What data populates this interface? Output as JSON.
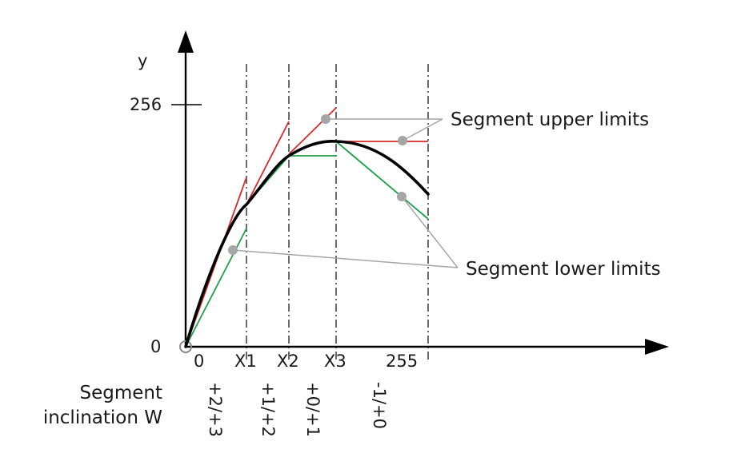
{
  "axes": {
    "y_label": "y",
    "y_tick_top": "256",
    "y_tick_origin": "0",
    "x_ticks": [
      "0",
      "X1",
      "X2",
      "X3",
      "255"
    ]
  },
  "annotations": {
    "upper": "Segment upper limits",
    "lower": "Segment lower limits"
  },
  "inclination": {
    "label_line1": "Segment",
    "label_line2": "inclination W",
    "values": [
      "+2/+3",
      "+1/+2",
      "+0/+1",
      "-1/+0"
    ]
  },
  "colors": {
    "curve": "#000000",
    "upper_limit": "#d42a2a",
    "lower_limit": "#1fa04a",
    "marker": "#a6a6a6",
    "leader": "#a6a6a6"
  }
}
